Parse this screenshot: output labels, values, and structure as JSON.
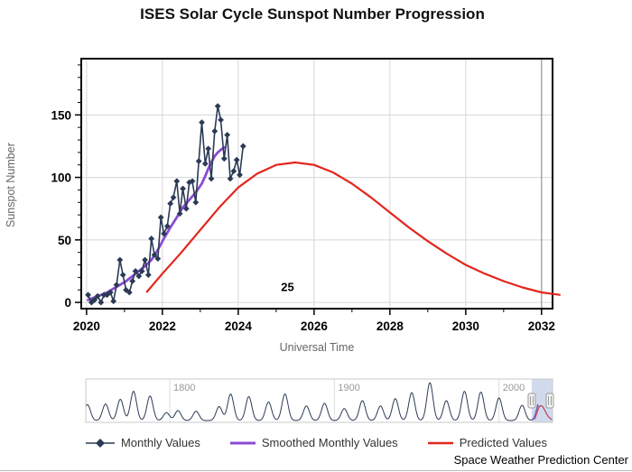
{
  "credit": "Space Weather Prediction Center",
  "chart_data": {
    "type": "line",
    "title": "ISES Solar Cycle Sunspot Number Progression",
    "xlabel": "Universal Time",
    "ylabel": "Sunspot Number",
    "xlim": [
      2019.86,
      2032.29
    ],
    "ylim": [
      -5,
      195
    ],
    "x_ticks": [
      2020,
      2022,
      2024,
      2026,
      2028,
      2030,
      2032
    ],
    "y_ticks": [
      0,
      50,
      100,
      150
    ],
    "grid": true,
    "legend_position": "bottom",
    "annotation": {
      "text": "25",
      "x": 2025.3,
      "y": 9
    },
    "series": [
      {
        "name": "Monthly Values",
        "type": "line",
        "marker": "diamond",
        "color": "#2b3a55",
        "points": [
          [
            2020.04,
            6
          ],
          [
            2020.13,
            0
          ],
          [
            2020.21,
            2
          ],
          [
            2020.29,
            5
          ],
          [
            2020.38,
            0
          ],
          [
            2020.46,
            6
          ],
          [
            2020.54,
            6
          ],
          [
            2020.63,
            8
          ],
          [
            2020.71,
            1
          ],
          [
            2020.79,
            14
          ],
          [
            2020.88,
            34
          ],
          [
            2020.96,
            22
          ],
          [
            2021.04,
            10
          ],
          [
            2021.13,
            8
          ],
          [
            2021.21,
            17
          ],
          [
            2021.29,
            25
          ],
          [
            2021.38,
            21
          ],
          [
            2021.46,
            25
          ],
          [
            2021.54,
            34
          ],
          [
            2021.63,
            22
          ],
          [
            2021.71,
            51
          ],
          [
            2021.79,
            38
          ],
          [
            2021.88,
            35
          ],
          [
            2021.96,
            68
          ],
          [
            2022.04,
            55
          ],
          [
            2022.13,
            61
          ],
          [
            2022.21,
            79
          ],
          [
            2022.29,
            84
          ],
          [
            2022.38,
            97
          ],
          [
            2022.46,
            71
          ],
          [
            2022.54,
            91
          ],
          [
            2022.63,
            75
          ],
          [
            2022.71,
            96
          ],
          [
            2022.79,
            97
          ],
          [
            2022.88,
            80
          ],
          [
            2022.96,
            113
          ],
          [
            2023.04,
            144
          ],
          [
            2023.13,
            111
          ],
          [
            2023.21,
            123
          ],
          [
            2023.29,
            99
          ],
          [
            2023.38,
            137
          ],
          [
            2023.46,
            157
          ],
          [
            2023.54,
            146
          ],
          [
            2023.63,
            115
          ],
          [
            2023.71,
            134
          ],
          [
            2023.79,
            99
          ],
          [
            2023.88,
            105
          ],
          [
            2023.96,
            114
          ],
          [
            2024.04,
            102
          ],
          [
            2024.13,
            125
          ]
        ]
      },
      {
        "name": "Smoothed Monthly Values",
        "type": "line",
        "color": "#8a4bd4",
        "points": [
          [
            2020.04,
            2
          ],
          [
            2020.21,
            4
          ],
          [
            2020.38,
            6
          ],
          [
            2020.54,
            8
          ],
          [
            2020.71,
            11
          ],
          [
            2020.88,
            14
          ],
          [
            2021.04,
            17
          ],
          [
            2021.21,
            21
          ],
          [
            2021.38,
            25
          ],
          [
            2021.54,
            29
          ],
          [
            2021.71,
            34
          ],
          [
            2021.88,
            42
          ],
          [
            2022.04,
            51
          ],
          [
            2022.21,
            60
          ],
          [
            2022.38,
            68
          ],
          [
            2022.54,
            76
          ],
          [
            2022.71,
            82
          ],
          [
            2022.88,
            88
          ],
          [
            2023.04,
            95
          ],
          [
            2023.13,
            101
          ],
          [
            2023.21,
            107
          ],
          [
            2023.29,
            112
          ],
          [
            2023.38,
            117
          ],
          [
            2023.46,
            120
          ],
          [
            2023.54,
            122
          ],
          [
            2023.63,
            124
          ]
        ]
      },
      {
        "name": "Predicted Values",
        "type": "line",
        "color": "#e3261d",
        "points": [
          [
            2021.58,
            8
          ],
          [
            2022.0,
            23
          ],
          [
            2022.5,
            40
          ],
          [
            2023.0,
            58
          ],
          [
            2023.5,
            76
          ],
          [
            2024.0,
            92
          ],
          [
            2024.5,
            103
          ],
          [
            2025.0,
            110
          ],
          [
            2025.5,
            112
          ],
          [
            2026.0,
            110
          ],
          [
            2026.5,
            104
          ],
          [
            2027.0,
            95
          ],
          [
            2027.5,
            84
          ],
          [
            2028.0,
            72
          ],
          [
            2028.5,
            60
          ],
          [
            2029.0,
            49
          ],
          [
            2029.5,
            39
          ],
          [
            2030.0,
            30
          ],
          [
            2030.5,
            23
          ],
          [
            2031.0,
            17
          ],
          [
            2031.5,
            12
          ],
          [
            2032.0,
            8
          ],
          [
            2032.5,
            6
          ]
        ]
      }
    ]
  },
  "navigator": {
    "xlim": [
      1749,
      2032.5
    ],
    "selection": [
      2019.86,
      2032.5
    ],
    "gridlines": [
      {
        "year": 1800,
        "label": "1800"
      },
      {
        "year": 1900,
        "label": "1900"
      },
      {
        "year": 2000,
        "label": "2000"
      }
    ],
    "line_color": "#2b3a55",
    "mask_color": "rgba(102,133,194,0.3)",
    "cycles": [
      [
        1750,
        120
      ],
      [
        1761,
        125
      ],
      [
        1770,
        160
      ],
      [
        1778,
        220
      ],
      [
        1788,
        185
      ],
      [
        1798,
        60
      ],
      [
        1805,
        75
      ],
      [
        1816,
        70
      ],
      [
        1830,
        105
      ],
      [
        1837,
        200
      ],
      [
        1848,
        180
      ],
      [
        1860,
        140
      ],
      [
        1870,
        200
      ],
      [
        1883,
        110
      ],
      [
        1894,
        130
      ],
      [
        1906,
        90
      ],
      [
        1917,
        150
      ],
      [
        1928,
        110
      ],
      [
        1937,
        165
      ],
      [
        1947,
        210
      ],
      [
        1958,
        285
      ],
      [
        1968,
        150
      ],
      [
        1979,
        220
      ],
      [
        1989,
        215
      ],
      [
        2000,
        170
      ],
      [
        2014,
        115
      ],
      [
        2024.5,
        120
      ]
    ]
  }
}
